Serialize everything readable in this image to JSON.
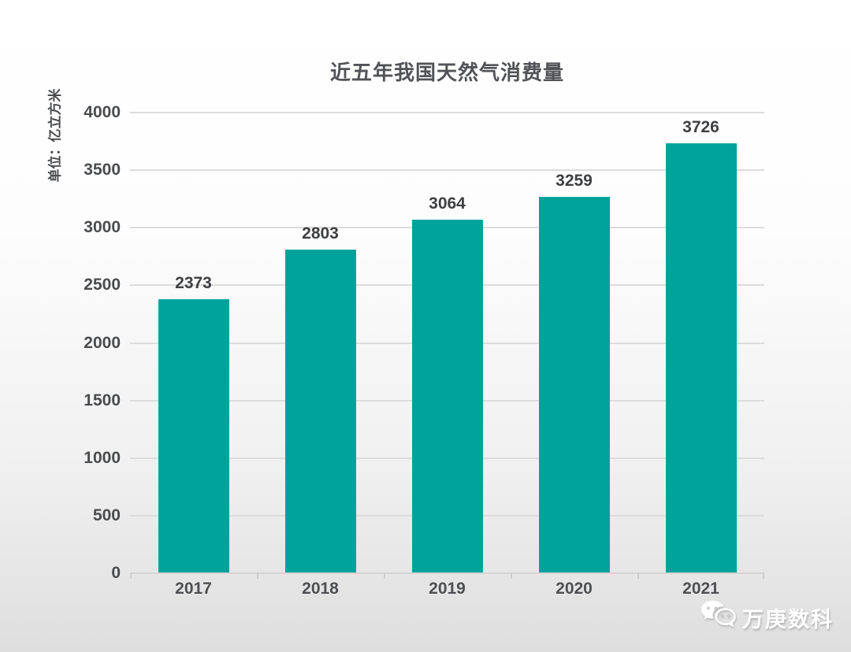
{
  "chart_data": {
    "type": "bar",
    "title": "近五年我国天然气消费量",
    "ylabel": "单位：亿立方米",
    "xlabel": "",
    "categories": [
      "2017",
      "2018",
      "2019",
      "2020",
      "2021"
    ],
    "values": [
      2373,
      2803,
      3064,
      3259,
      3726
    ],
    "value_labels": [
      "2373",
      "2803",
      "3064",
      "3259",
      "3726"
    ],
    "ylim": [
      0,
      4000
    ],
    "ytick_step": 500,
    "ytick_labels": [
      "0",
      "500",
      "1000",
      "1500",
      "2000",
      "2500",
      "3000",
      "3500",
      "4000"
    ],
    "grid": true,
    "legend": "none",
    "bar_color": "#00a39b"
  },
  "watermark": {
    "text": "万庚数科",
    "icon": "wechat-icon"
  },
  "colors": {
    "bar": "#00a39b",
    "title_text": "#525356",
    "tick_text": "#4a4b4d",
    "value_text": "#3e3f41",
    "gridline": "#dcdcdc",
    "background_top": "#ffffff",
    "background_bottom": "#dedede"
  }
}
